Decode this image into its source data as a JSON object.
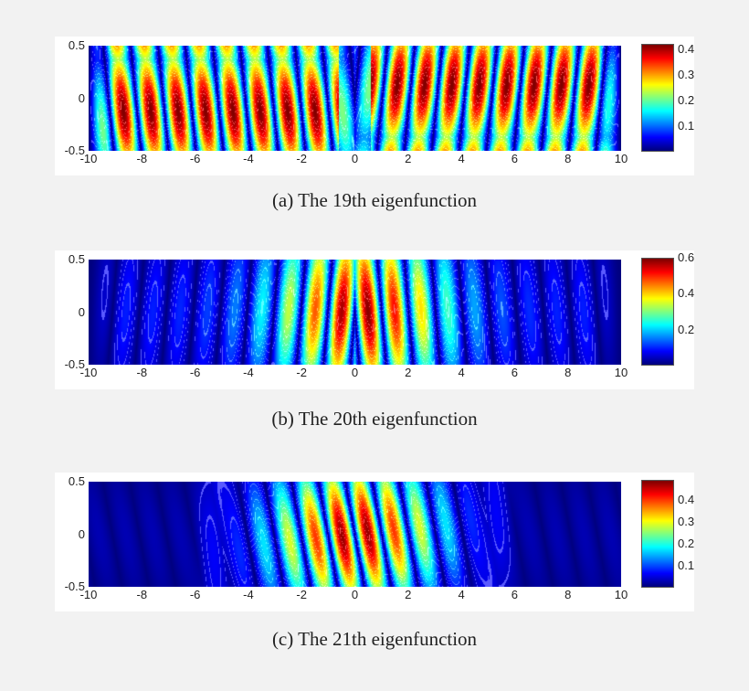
{
  "chart_data": [
    {
      "type": "heatmap",
      "caption": "(a) The 19th eigenfunction",
      "xlim": [
        -10,
        10
      ],
      "ylim": [
        -0.5,
        0.5
      ],
      "xticks": [
        "-10",
        "-8",
        "-6",
        "-4",
        "-2",
        "0",
        "2",
        "4",
        "6",
        "8",
        "10"
      ],
      "yticks": [
        "0.5",
        "0",
        "-0.5"
      ],
      "colorbar": {
        "range": [
          0,
          0.42
        ],
        "ticks": [
          "0.1",
          "0.2",
          "0.3",
          "0.4"
        ],
        "tick_values": [
          0.1,
          0.2,
          0.3,
          0.4
        ]
      },
      "colormap": "jet"
    },
    {
      "type": "heatmap",
      "caption": "(b) The 20th eigenfunction",
      "xlim": [
        -10,
        10
      ],
      "ylim": [
        -0.5,
        0.5
      ],
      "xticks": [
        "-10",
        "-8",
        "-6",
        "-4",
        "-2",
        "0",
        "2",
        "4",
        "6",
        "8",
        "10"
      ],
      "yticks": [
        "0.5",
        "0",
        "-0.5"
      ],
      "colorbar": {
        "range": [
          0,
          0.6
        ],
        "ticks": [
          "0.2",
          "0.4",
          "0.6"
        ],
        "tick_values": [
          0.2,
          0.4,
          0.6
        ]
      },
      "colormap": "jet"
    },
    {
      "type": "heatmap",
      "caption": "(c) The 21th eigenfunction",
      "xlim": [
        -10,
        10
      ],
      "ylim": [
        -0.5,
        0.5
      ],
      "xticks": [
        "-10",
        "-8",
        "-6",
        "-4",
        "-2",
        "0",
        "2",
        "4",
        "6",
        "8",
        "10"
      ],
      "yticks": [
        "0.5",
        "0",
        "-0.5"
      ],
      "colorbar": {
        "range": [
          0,
          0.49
        ],
        "ticks": [
          "0.1",
          "0.2",
          "0.3",
          "0.4"
        ],
        "tick_values": [
          0.1,
          0.2,
          0.3,
          0.4
        ]
      },
      "colormap": "jet"
    }
  ]
}
